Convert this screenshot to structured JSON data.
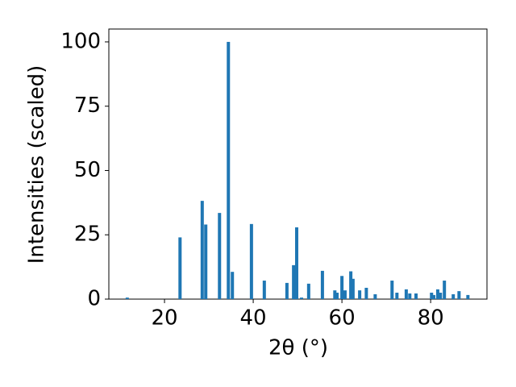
{
  "chart_data": {
    "type": "bar",
    "xlabel": "2θ (°)",
    "ylabel": "Intensities (scaled)",
    "x": [
      11.6,
      23.5,
      28.5,
      29.3,
      32.4,
      34.4,
      35.3,
      39.6,
      42.5,
      47.6,
      49.1,
      49.8,
      50.9,
      52.5,
      55.6,
      58.4,
      58.9,
      60.0,
      60.7,
      62.0,
      62.5,
      64.0,
      65.5,
      67.5,
      71.3,
      72.4,
      74.5,
      75.3,
      76.7,
      80.2,
      80.7,
      81.6,
      82.2,
      83.1,
      85.1,
      86.4,
      88.4
    ],
    "values": [
      0.6,
      24,
      38.2,
      29,
      33.5,
      100,
      10.6,
      29.2,
      7.2,
      6.3,
      13.2,
      27.9,
      0.6,
      6.0,
      11,
      3.4,
      2.5,
      9,
      3.4,
      10.8,
      7.9,
      3.4,
      4.4,
      1.9,
      7.2,
      2.5,
      3.8,
      2.2,
      2.2,
      2.5,
      1.6,
      3.8,
      2.5,
      7.2,
      1.9,
      3.1,
      1.6
    ],
    "color": "#1f77b4",
    "xlim": [
      7.45,
      92.7
    ],
    "ylim": [
      0,
      105
    ],
    "xticks": [
      20,
      40,
      60,
      80
    ],
    "yticks": [
      0,
      25,
      50,
      75,
      100
    ]
  }
}
